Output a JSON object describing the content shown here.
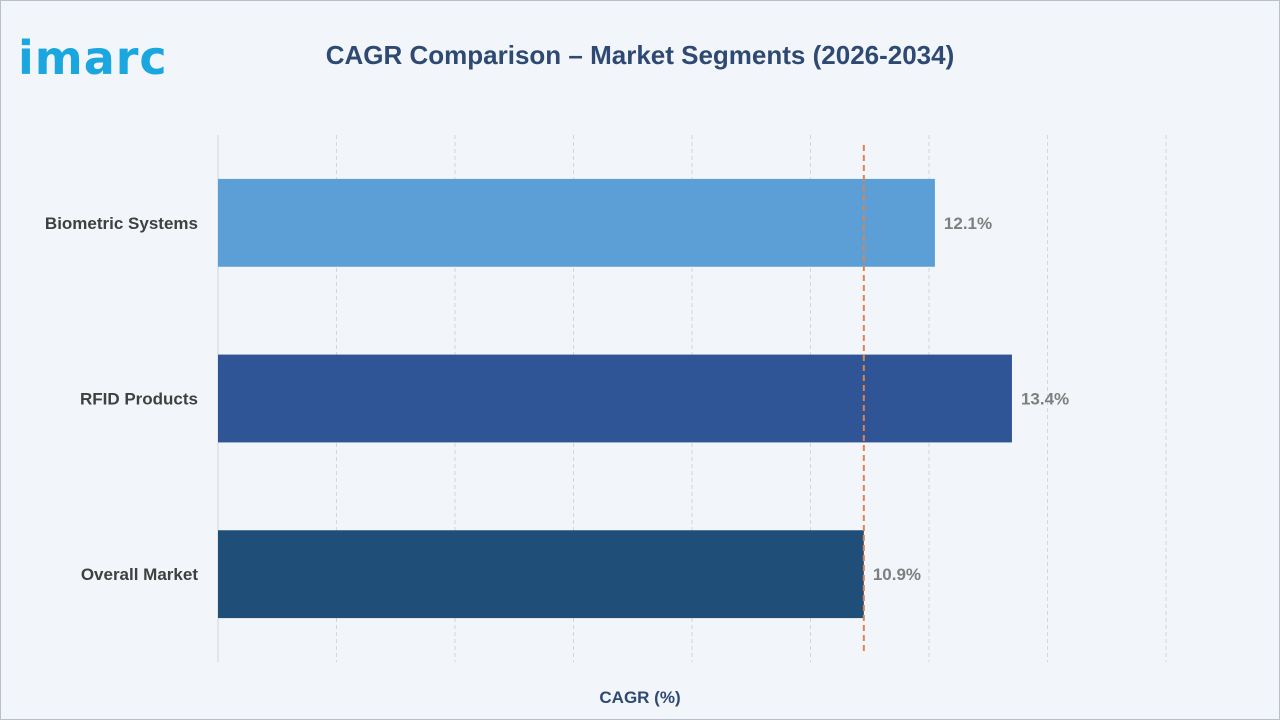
{
  "brand": {
    "logo_text": "imarc",
    "logo_color": "#1aa6df"
  },
  "chart_data": {
    "type": "bar",
    "orientation": "horizontal",
    "title": "CAGR Comparison – Market Segments (2026-2034)",
    "xlabel": "CAGR (%)",
    "ylabel": "",
    "categories": [
      "Biometric Systems",
      "RFID Products",
      "Overall Market"
    ],
    "values": [
      12.1,
      13.4,
      10.9
    ],
    "value_labels": [
      "12.1%",
      "13.4%",
      "10.9%"
    ],
    "colors": [
      "#5b9fd6",
      "#2f5597",
      "#1f4e79"
    ],
    "xlim": [
      0,
      16
    ],
    "grid": true,
    "reference_line": {
      "value": 10.9,
      "style": "dashed",
      "color": "#e0824b"
    },
    "colors_meta": {
      "title": "#2e4a73",
      "label": "#404040",
      "value_label": "#7f7f7f",
      "grid": "#d3d6db"
    }
  }
}
